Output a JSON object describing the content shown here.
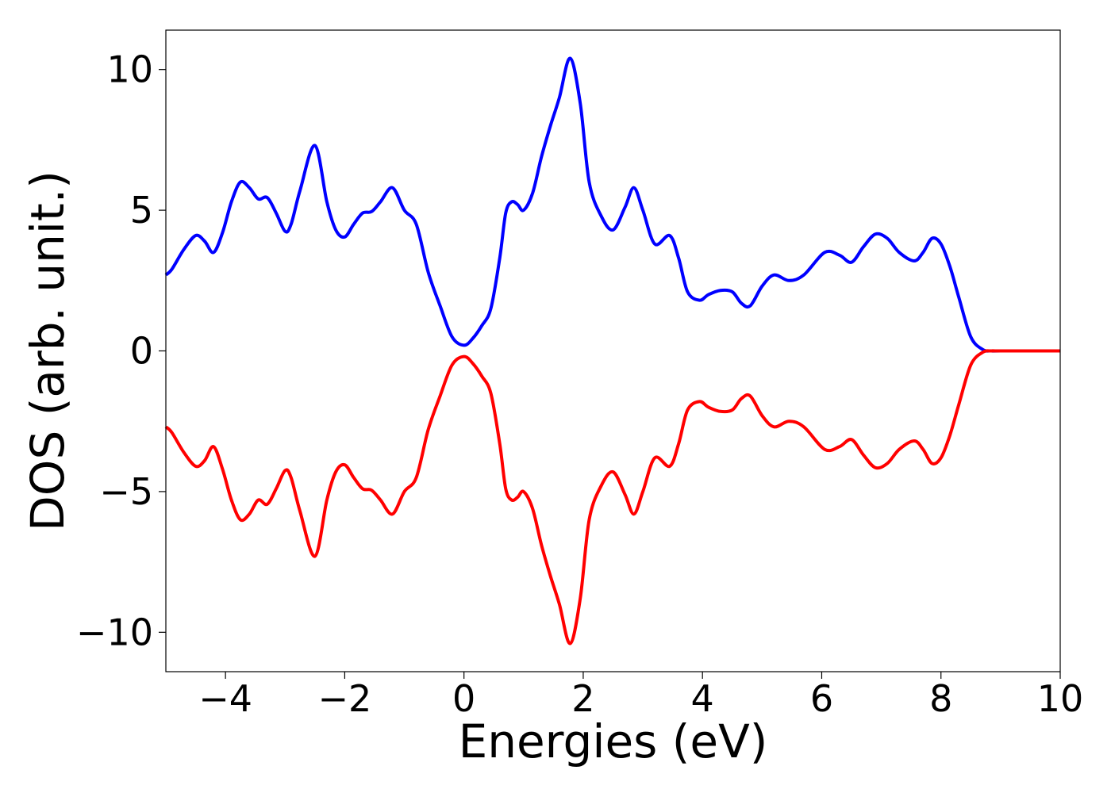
{
  "chart_data": {
    "type": "line",
    "title": "",
    "xlabel": "Energies (eV)",
    "ylabel": "DOS (arb. unit.)",
    "xlim": [
      -5,
      10
    ],
    "ylim": [
      -11.4,
      11.4
    ],
    "xticks": [
      -4,
      -2,
      0,
      2,
      4,
      6,
      8,
      10
    ],
    "xtick_labels": [
      "−4",
      "−2",
      "0",
      "2",
      "4",
      "6",
      "8",
      "10"
    ],
    "yticks": [
      -10,
      -5,
      0,
      5,
      10
    ],
    "ytick_labels": [
      "−10",
      "−5",
      "0",
      "5",
      "10"
    ],
    "grid": false,
    "legend": false,
    "series": [
      {
        "color": "#0000ff",
        "x": [
          -5.0,
          -4.9,
          -4.7,
          -4.5,
          -4.35,
          -4.2,
          -4.05,
          -3.9,
          -3.75,
          -3.6,
          -3.45,
          -3.3,
          -3.15,
          -3.0,
          -2.9,
          -2.75,
          -2.5,
          -2.3,
          -2.15,
          -2.0,
          -1.85,
          -1.7,
          -1.55,
          -1.4,
          -1.2,
          -1.0,
          -0.8,
          -0.6,
          -0.4,
          -0.2,
          0.0,
          0.15,
          0.3,
          0.45,
          0.6,
          0.7,
          0.8,
          0.9,
          1.0,
          1.15,
          1.3,
          1.45,
          1.6,
          1.78,
          1.95,
          2.1,
          2.3,
          2.5,
          2.7,
          2.85,
          3.0,
          3.2,
          3.45,
          3.6,
          3.75,
          3.95,
          4.1,
          4.3,
          4.5,
          4.65,
          4.8,
          5.0,
          5.2,
          5.45,
          5.7,
          6.05,
          6.3,
          6.5,
          6.7,
          6.9,
          7.1,
          7.3,
          7.55,
          7.7,
          7.85,
          8.0,
          8.15,
          8.3,
          8.5,
          8.7,
          8.85,
          9.0,
          10.0
        ],
        "values": [
          2.7,
          2.9,
          3.6,
          4.1,
          3.9,
          3.5,
          4.2,
          5.3,
          6.0,
          5.8,
          5.4,
          5.45,
          4.9,
          4.25,
          4.5,
          5.7,
          7.3,
          5.3,
          4.3,
          4.05,
          4.5,
          4.9,
          4.95,
          5.3,
          5.8,
          5.0,
          4.5,
          2.8,
          1.6,
          0.5,
          0.2,
          0.45,
          0.9,
          1.5,
          3.3,
          4.9,
          5.3,
          5.2,
          5.0,
          5.6,
          6.9,
          8.0,
          9.0,
          10.4,
          8.8,
          6.0,
          4.8,
          4.3,
          5.1,
          5.8,
          5.0,
          3.8,
          4.1,
          3.3,
          2.1,
          1.8,
          2.0,
          2.15,
          2.1,
          1.7,
          1.6,
          2.3,
          2.7,
          2.5,
          2.7,
          3.5,
          3.4,
          3.15,
          3.7,
          4.15,
          4.0,
          3.5,
          3.2,
          3.5,
          4.0,
          3.8,
          3.0,
          1.9,
          0.5,
          0.05,
          0.0,
          0.0,
          0.0
        ]
      },
      {
        "color": "#ff0000",
        "x": [
          -5.0,
          -4.9,
          -4.7,
          -4.5,
          -4.35,
          -4.2,
          -4.05,
          -3.9,
          -3.75,
          -3.6,
          -3.45,
          -3.3,
          -3.15,
          -3.0,
          -2.9,
          -2.75,
          -2.5,
          -2.3,
          -2.15,
          -2.0,
          -1.85,
          -1.7,
          -1.55,
          -1.4,
          -1.2,
          -1.0,
          -0.8,
          -0.6,
          -0.4,
          -0.2,
          0.0,
          0.15,
          0.3,
          0.45,
          0.6,
          0.7,
          0.8,
          0.9,
          1.0,
          1.15,
          1.3,
          1.45,
          1.6,
          1.78,
          1.95,
          2.1,
          2.3,
          2.5,
          2.7,
          2.85,
          3.0,
          3.2,
          3.45,
          3.6,
          3.75,
          3.95,
          4.1,
          4.3,
          4.5,
          4.65,
          4.8,
          5.0,
          5.2,
          5.45,
          5.7,
          6.05,
          6.3,
          6.5,
          6.7,
          6.9,
          7.1,
          7.3,
          7.55,
          7.7,
          7.85,
          8.0,
          8.15,
          8.3,
          8.5,
          8.7,
          8.85,
          9.0,
          10.0
        ],
        "values": [
          -2.7,
          -2.9,
          -3.6,
          -4.1,
          -3.9,
          -3.4,
          -4.2,
          -5.3,
          -6.0,
          -5.8,
          -5.3,
          -5.45,
          -4.9,
          -4.25,
          -4.5,
          -5.7,
          -7.3,
          -5.3,
          -4.3,
          -4.05,
          -4.5,
          -4.9,
          -4.95,
          -5.3,
          -5.8,
          -5.0,
          -4.5,
          -2.8,
          -1.6,
          -0.5,
          -0.2,
          -0.45,
          -0.9,
          -1.5,
          -3.3,
          -4.9,
          -5.3,
          -5.2,
          -5.0,
          -5.6,
          -6.9,
          -8.0,
          -9.0,
          -10.4,
          -8.8,
          -6.0,
          -4.8,
          -4.3,
          -5.1,
          -5.8,
          -5.0,
          -3.8,
          -4.1,
          -3.3,
          -2.1,
          -1.8,
          -2.0,
          -2.15,
          -2.1,
          -1.7,
          -1.6,
          -2.3,
          -2.7,
          -2.5,
          -2.7,
          -3.5,
          -3.4,
          -3.15,
          -3.7,
          -4.15,
          -4.0,
          -3.5,
          -3.2,
          -3.5,
          -4.0,
          -3.8,
          -3.0,
          -1.9,
          -0.5,
          -0.05,
          0.0,
          0.0,
          0.0
        ]
      }
    ]
  }
}
